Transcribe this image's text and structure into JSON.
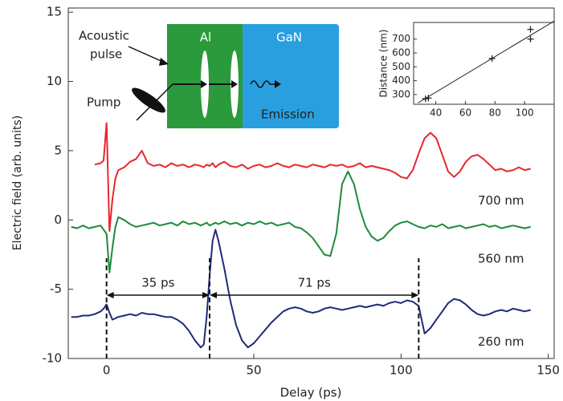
{
  "chart_data": [
    {
      "type": "line",
      "x_label": "Delay (ps)",
      "y_label": "Electric field (arb. units)",
      "xlim": [
        -13,
        152
      ],
      "ylim": [
        -10,
        15.3
      ],
      "xticks": [
        0,
        50,
        100,
        150
      ],
      "yticks": [
        -10,
        -5,
        0,
        5,
        10,
        15
      ],
      "x": [
        -12,
        -10,
        -8,
        -6,
        -4,
        -2,
        -1,
        0,
        1,
        2,
        3,
        4,
        6,
        8,
        10,
        12,
        14,
        16,
        18,
        20,
        22,
        24,
        26,
        28,
        30,
        32,
        33,
        34,
        35,
        36,
        37,
        38,
        40,
        42,
        44,
        46,
        48,
        50,
        52,
        54,
        56,
        58,
        60,
        62,
        64,
        66,
        68,
        70,
        72,
        74,
        76,
        78,
        80,
        82,
        84,
        86,
        88,
        90,
        92,
        94,
        96,
        98,
        100,
        102,
        104,
        106,
        108,
        110,
        112,
        114,
        116,
        118,
        120,
        122,
        124,
        126,
        128,
        130,
        132,
        134,
        136,
        138,
        140,
        142,
        144
      ],
      "series": [
        {
          "name": "700 nm",
          "color": "#e8262e",
          "values": [
            null,
            null,
            null,
            null,
            4.0,
            4.1,
            4.3,
            7.0,
            -0.8,
            1.5,
            3.0,
            3.6,
            3.8,
            4.2,
            4.4,
            5.0,
            4.1,
            3.9,
            4.0,
            3.8,
            4.1,
            3.9,
            4.0,
            3.8,
            4.0,
            3.9,
            3.8,
            4.0,
            3.9,
            4.1,
            3.8,
            4.0,
            4.2,
            3.9,
            3.8,
            4.0,
            3.7,
            3.9,
            4.0,
            3.8,
            3.9,
            4.1,
            3.9,
            3.8,
            4.0,
            3.9,
            3.8,
            4.0,
            3.9,
            3.8,
            4.0,
            3.9,
            4.0,
            3.8,
            3.9,
            4.1,
            3.8,
            3.9,
            3.8,
            3.7,
            3.6,
            3.4,
            3.1,
            3.0,
            3.6,
            4.8,
            5.9,
            6.3,
            5.9,
            4.7,
            3.5,
            3.1,
            3.5,
            4.2,
            4.6,
            4.7,
            4.4,
            4.0,
            3.6,
            3.7,
            3.5,
            3.6,
            3.8,
            3.6,
            3.7
          ]
        },
        {
          "name": "560 nm",
          "color": "#1e8b3a",
          "values": [
            -0.5,
            -0.6,
            -0.4,
            -0.6,
            -0.5,
            -0.4,
            -0.7,
            -1.0,
            -3.8,
            -2.0,
            -0.5,
            0.2,
            0.0,
            -0.3,
            -0.5,
            -0.4,
            -0.3,
            -0.2,
            -0.4,
            -0.3,
            -0.2,
            -0.4,
            -0.1,
            -0.3,
            -0.2,
            -0.4,
            -0.3,
            -0.2,
            -0.4,
            -0.3,
            -0.2,
            -0.3,
            -0.1,
            -0.3,
            -0.2,
            -0.4,
            -0.2,
            -0.3,
            -0.1,
            -0.3,
            -0.2,
            -0.4,
            -0.3,
            -0.2,
            -0.5,
            -0.6,
            -0.9,
            -1.3,
            -1.9,
            -2.5,
            -2.6,
            -1.0,
            2.6,
            3.5,
            2.6,
            0.8,
            -0.5,
            -1.2,
            -1.5,
            -1.3,
            -0.8,
            -0.4,
            -0.2,
            -0.1,
            -0.3,
            -0.5,
            -0.6,
            -0.4,
            -0.5,
            -0.3,
            -0.6,
            -0.5,
            -0.4,
            -0.6,
            -0.5,
            -0.4,
            -0.3,
            -0.5,
            -0.4,
            -0.6,
            -0.5,
            -0.4,
            -0.5,
            -0.6,
            -0.5
          ]
        },
        {
          "name": "260 nm",
          "color": "#1f2a7a",
          "values": [
            -7.0,
            -7.0,
            -6.9,
            -6.9,
            -6.8,
            -6.6,
            -6.4,
            -6.1,
            -6.7,
            -7.2,
            -7.1,
            -7.0,
            -6.9,
            -6.8,
            -6.9,
            -6.7,
            -6.8,
            -6.8,
            -6.9,
            -7.0,
            -7.0,
            -7.2,
            -7.5,
            -8.0,
            -8.7,
            -9.2,
            -9.0,
            -7.0,
            -4.0,
            -1.5,
            -0.7,
            -1.5,
            -3.5,
            -5.8,
            -7.6,
            -8.7,
            -9.2,
            -8.9,
            -8.4,
            -7.9,
            -7.4,
            -7.0,
            -6.6,
            -6.4,
            -6.3,
            -6.4,
            -6.6,
            -6.7,
            -6.6,
            -6.4,
            -6.3,
            -6.4,
            -6.5,
            -6.4,
            -6.3,
            -6.2,
            -6.3,
            -6.2,
            -6.1,
            -6.2,
            -6.0,
            -5.9,
            -6.0,
            -5.8,
            -5.9,
            -6.2,
            -8.2,
            -7.8,
            -7.2,
            -6.6,
            -6.0,
            -5.7,
            -5.8,
            -6.1,
            -6.5,
            -6.8,
            -6.9,
            -6.8,
            -6.6,
            -6.5,
            -6.6,
            -6.4,
            -6.5,
            -6.6,
            -6.5
          ]
        }
      ],
      "intervals": [
        {
          "label": "35 ps",
          "from": 0,
          "to": 35
        },
        {
          "label": "71 ps",
          "from": 35,
          "to": 106
        }
      ]
    },
    {
      "type": "scatter",
      "y_label": "Distance (nm)",
      "xlim": [
        25,
        120
      ],
      "ylim": [
        230,
        820
      ],
      "xticks": [
        40,
        60,
        80,
        100
      ],
      "yticks": [
        300,
        400,
        500,
        600,
        700
      ],
      "x": [
        33,
        35,
        78,
        104,
        104
      ],
      "values": [
        270,
        275,
        560,
        700,
        770
      ],
      "color": "#222",
      "fit": {
        "x": [
          28,
          120
        ],
        "y": [
          240,
          830
        ]
      }
    }
  ],
  "diagram": {
    "layers": [
      "Al",
      "GaN"
    ],
    "labels": [
      "Acoustic",
      "pulse",
      "Pump",
      "Emission"
    ]
  }
}
